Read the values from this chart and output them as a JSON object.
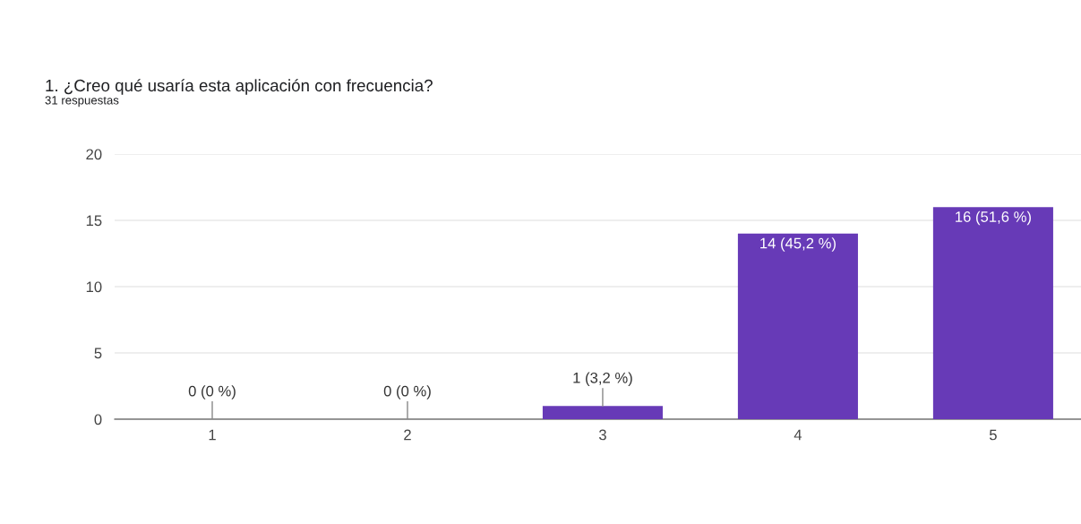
{
  "chart_data": {
    "type": "bar",
    "title": "1. ¿Creo qué usaría esta aplicación con frecuencia?",
    "subtitle": "31 respuestas",
    "categories": [
      "1",
      "2",
      "3",
      "4",
      "5"
    ],
    "values": [
      0,
      0,
      1,
      14,
      16
    ],
    "value_labels": [
      "0 (0 %)",
      "0 (0 %)",
      "1 (3,2 %)",
      "14 (45,2 %)",
      "16 (51,6 %)"
    ],
    "color": "#673ab7",
    "ylim": [
      0,
      20
    ],
    "yticks": [
      0,
      5,
      10,
      15,
      20
    ],
    "grid": "y",
    "legend": false
  }
}
